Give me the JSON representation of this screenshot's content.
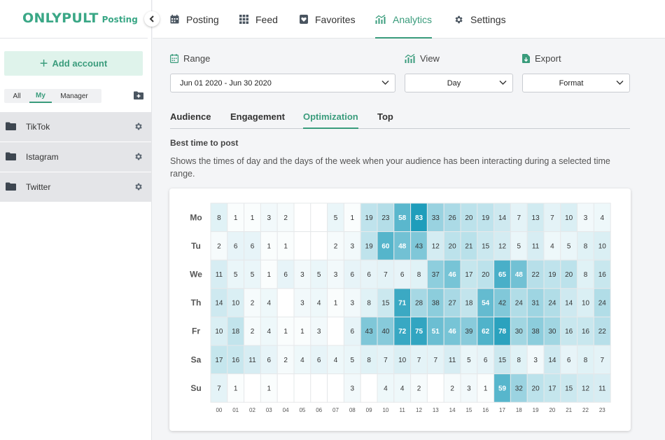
{
  "brand": {
    "name": "ONLYPULT",
    "product": "Posting",
    "color": "#3aa786"
  },
  "sidebar": {
    "add_account_label": "Add account",
    "filters": {
      "all": "All",
      "my": "My",
      "manager": "Manager",
      "selected": "My"
    },
    "accounts": [
      {
        "label": "TikTok"
      },
      {
        "label": "Istagram"
      },
      {
        "label": "Twitter"
      }
    ]
  },
  "nav": {
    "items": [
      {
        "label": "Posting",
        "icon": "calendar-icon"
      },
      {
        "label": "Feed",
        "icon": "grid-icon"
      },
      {
        "label": "Favorites",
        "icon": "heart-icon"
      },
      {
        "label": "Analytics",
        "icon": "analytics-icon"
      },
      {
        "label": "Settings",
        "icon": "gear-icon"
      }
    ],
    "active": "Analytics"
  },
  "controls": {
    "range": {
      "label": "Range",
      "value": "Jun 01 2020 - Jun 30 2020"
    },
    "view": {
      "label": "View",
      "value": "Day"
    },
    "export": {
      "label": "Export",
      "value": "Format"
    }
  },
  "tabs": {
    "items": [
      "Audience",
      "Engagement",
      "Optimization",
      "Top"
    ],
    "active": "Optimization"
  },
  "section": {
    "title": "Best time to post",
    "description": "Shows the times of day and the days of the week when your audience has been interacting during a selected time range."
  },
  "chart_data": {
    "type": "heatmap",
    "title": "",
    "days": [
      "Mo",
      "Tu",
      "We",
      "Th",
      "Fr",
      "Sa",
      "Su"
    ],
    "hours": [
      "00",
      "01",
      "02",
      "03",
      "04",
      "05",
      "06",
      "07",
      "08",
      "09",
      "10",
      "11",
      "12",
      "13",
      "14",
      "15",
      "16",
      "17",
      "18",
      "19",
      "20",
      "21",
      "22",
      "23"
    ],
    "values": [
      [
        8,
        1,
        1,
        3,
        2,
        null,
        null,
        5,
        1,
        19,
        23,
        58,
        83,
        33,
        26,
        20,
        19,
        14,
        7,
        13,
        7,
        10,
        3,
        4
      ],
      [
        2,
        6,
        6,
        1,
        1,
        null,
        null,
        2,
        3,
        19,
        60,
        48,
        43,
        12,
        20,
        21,
        15,
        12,
        5,
        11,
        4,
        5,
        8,
        10
      ],
      [
        11,
        5,
        5,
        1,
        6,
        3,
        5,
        3,
        6,
        6,
        7,
        6,
        8,
        37,
        46,
        17,
        20,
        65,
        48,
        22,
        19,
        20,
        8,
        16
      ],
      [
        14,
        10,
        2,
        4,
        null,
        3,
        4,
        1,
        3,
        8,
        15,
        71,
        28,
        38,
        27,
        18,
        54,
        42,
        24,
        31,
        24,
        14,
        10,
        24
      ],
      [
        10,
        18,
        2,
        4,
        1,
        1,
        3,
        null,
        6,
        43,
        40,
        72,
        75,
        51,
        46,
        39,
        62,
        78,
        30,
        38,
        30,
        16,
        16,
        22
      ],
      [
        17,
        16,
        11,
        6,
        2,
        4,
        6,
        4,
        5,
        8,
        7,
        10,
        7,
        7,
        11,
        5,
        6,
        15,
        8,
        3,
        14,
        6,
        8,
        7
      ],
      [
        7,
        1,
        null,
        1,
        null,
        null,
        null,
        null,
        3,
        null,
        4,
        4,
        2,
        null,
        2,
        3,
        1,
        59,
        32,
        20,
        17,
        15,
        12,
        11
      ]
    ],
    "color_scale": {
      "low": "#ffffff",
      "high": "#1f9dbb"
    },
    "grid": true
  }
}
